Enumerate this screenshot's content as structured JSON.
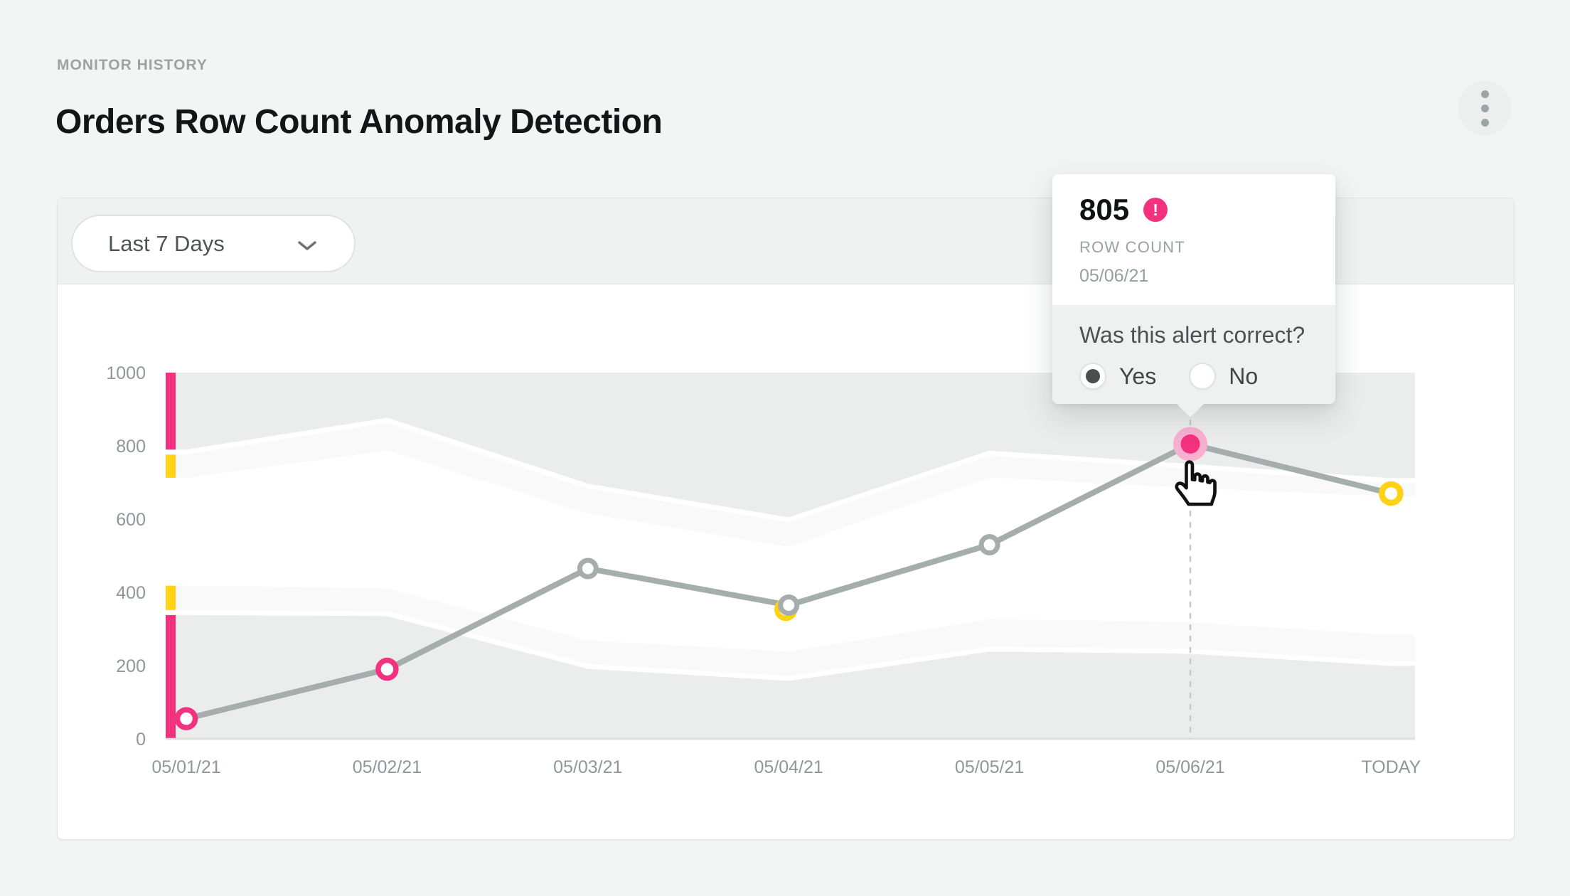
{
  "page": {
    "eyebrow": "MONITOR HISTORY",
    "title": "Orders Row Count Anomaly Detection"
  },
  "filter": {
    "selected_range": "Last 7 Days"
  },
  "tooltip": {
    "value": "805",
    "alert_icon_glyph": "!",
    "metric_label": "ROW COUNT",
    "date": "05/06/21",
    "question": "Was this alert correct?",
    "yes_label": "Yes",
    "no_label": "No",
    "selected_answer": "Yes"
  },
  "colors": {
    "alert_pink": "#f4317e",
    "alert_halo": "#f8afd0",
    "warning_yellow": "#ffd215",
    "line_gray": "#a5adad",
    "band_base": "#ebedec",
    "band_light": "#f8f9f8",
    "band_white": "#ffffff",
    "axis_line": "#d9dddc",
    "dashed_line": "#c4c9c9"
  },
  "chart_data": {
    "type": "line",
    "title": "Row count over last 7 days with anomaly bands",
    "categories": [
      "05/01/21",
      "05/02/21",
      "05/03/21",
      "05/04/21",
      "05/05/21",
      "05/06/21",
      "TODAY"
    ],
    "series": [
      {
        "name": "Row Count",
        "values": [
          55,
          190,
          465,
          365,
          530,
          805,
          670
        ]
      }
    ],
    "point_status": [
      "alert",
      "alert",
      "normal",
      "warning_offset",
      "normal",
      "alert_active",
      "warning"
    ],
    "highlight_index": 5,
    "y_ticks": [
      1000,
      800,
      600,
      400,
      200,
      0
    ],
    "ylim": [
      0,
      1000
    ],
    "grid": false,
    "legend": "none",
    "bands": {
      "upper_outer": [
        783,
        870,
        690,
        598,
        780,
        744,
        705
      ],
      "upper_inner": [
        706,
        780,
        608,
        518,
        707,
        678,
        655
      ],
      "lower_inner": [
        425,
        418,
        276,
        245,
        334,
        325,
        291
      ],
      "lower_outer": [
        345,
        342,
        198,
        165,
        245,
        239,
        206
      ]
    }
  }
}
